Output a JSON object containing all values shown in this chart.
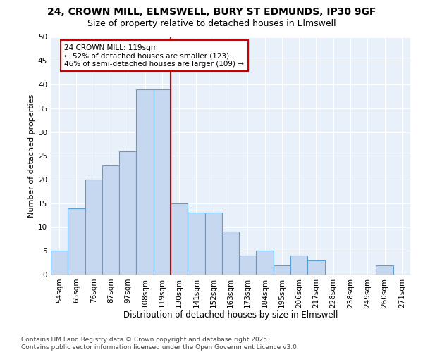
{
  "title1": "24, CROWN MILL, ELMSWELL, BURY ST EDMUNDS, IP30 9GF",
  "title2": "Size of property relative to detached houses in Elmswell",
  "xlabel": "Distribution of detached houses by size in Elmswell",
  "ylabel": "Number of detached properties",
  "categories": [
    "54sqm",
    "65sqm",
    "76sqm",
    "87sqm",
    "97sqm",
    "108sqm",
    "119sqm",
    "130sqm",
    "141sqm",
    "152sqm",
    "163sqm",
    "173sqm",
    "184sqm",
    "195sqm",
    "206sqm",
    "217sqm",
    "228sqm",
    "238sqm",
    "249sqm",
    "260sqm",
    "271sqm"
  ],
  "values": [
    5,
    14,
    20,
    23,
    26,
    39,
    39,
    15,
    13,
    13,
    9,
    4,
    5,
    2,
    4,
    3,
    0,
    0,
    0,
    2,
    0
  ],
  "bar_color": "#c5d8f0",
  "bar_edge_color": "#5a9fd4",
  "vline_x": 6.5,
  "vline_color": "#cc0000",
  "annotation_text": "24 CROWN MILL: 119sqm\n← 52% of detached houses are smaller (123)\n46% of semi-detached houses are larger (109) →",
  "annotation_box_color": "#ffffff",
  "annotation_box_edge": "#cc0000",
  "ylim": [
    0,
    50
  ],
  "yticks": [
    0,
    5,
    10,
    15,
    20,
    25,
    30,
    35,
    40,
    45,
    50
  ],
  "bg_color": "#e8f0fa",
  "footer": "Contains HM Land Registry data © Crown copyright and database right 2025.\nContains public sector information licensed under the Open Government Licence v3.0.",
  "title1_fontsize": 10,
  "title2_fontsize": 9,
  "xlabel_fontsize": 8.5,
  "ylabel_fontsize": 8,
  "tick_fontsize": 7.5,
  "annotation_fontsize": 7.5,
  "footer_fontsize": 6.5
}
